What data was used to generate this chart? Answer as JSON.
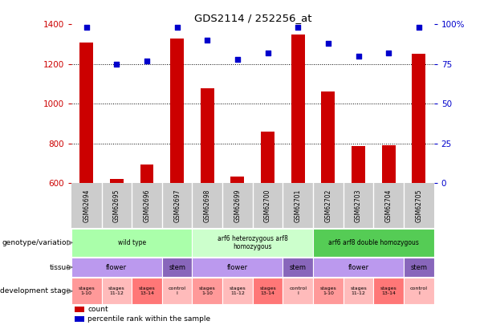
{
  "title": "GDS2114 / 252256_at",
  "samples": [
    "GSM62694",
    "GSM62695",
    "GSM62696",
    "GSM62697",
    "GSM62698",
    "GSM62699",
    "GSM62700",
    "GSM62701",
    "GSM62702",
    "GSM62703",
    "GSM62704",
    "GSM62705"
  ],
  "counts": [
    1310,
    620,
    695,
    1330,
    1080,
    635,
    860,
    1350,
    1060,
    785,
    790,
    1250
  ],
  "percentiles": [
    98,
    75,
    77,
    98,
    90,
    78,
    82,
    98,
    88,
    80,
    82,
    98
  ],
  "ylim_left": [
    600,
    1400
  ],
  "ylim_right": [
    0,
    100
  ],
  "yticks_left": [
    600,
    800,
    1000,
    1200,
    1400
  ],
  "yticks_right": [
    0,
    25,
    50,
    75,
    100
  ],
  "bar_color": "#CC0000",
  "dot_color": "#0000CC",
  "genotype_groups": [
    {
      "label": "wild type",
      "start": 0,
      "end": 3,
      "color": "#AAFFAA"
    },
    {
      "label": "arf6 heterozygous arf8\nhomozygous",
      "start": 4,
      "end": 7,
      "color": "#CCFFCC"
    },
    {
      "label": "arf6 arf8 double homozygous",
      "start": 8,
      "end": 11,
      "color": "#55CC55"
    }
  ],
  "tissue_groups": [
    {
      "label": "flower",
      "start": 0,
      "end": 2,
      "color": "#BB99EE"
    },
    {
      "label": "stem",
      "start": 3,
      "end": 3,
      "color": "#8866BB"
    },
    {
      "label": "flower",
      "start": 4,
      "end": 6,
      "color": "#BB99EE"
    },
    {
      "label": "stem",
      "start": 7,
      "end": 7,
      "color": "#8866BB"
    },
    {
      "label": "flower",
      "start": 8,
      "end": 10,
      "color": "#BB99EE"
    },
    {
      "label": "stem",
      "start": 11,
      "end": 11,
      "color": "#8866BB"
    }
  ],
  "stage_groups": [
    {
      "label": "stages\n1-10",
      "start": 0,
      "end": 0,
      "color": "#FF9999"
    },
    {
      "label": "stages\n11-12",
      "start": 1,
      "end": 1,
      "color": "#FFBBBB"
    },
    {
      "label": "stages\n13-14",
      "start": 2,
      "end": 2,
      "color": "#FF7777"
    },
    {
      "label": "control\nl",
      "start": 3,
      "end": 3,
      "color": "#FFBBBB"
    },
    {
      "label": "stages\n1-10",
      "start": 4,
      "end": 4,
      "color": "#FF9999"
    },
    {
      "label": "stages\n11-12",
      "start": 5,
      "end": 5,
      "color": "#FFBBBB"
    },
    {
      "label": "stages\n13-14",
      "start": 6,
      "end": 6,
      "color": "#FF7777"
    },
    {
      "label": "control\nl",
      "start": 7,
      "end": 7,
      "color": "#FFBBBB"
    },
    {
      "label": "stages\n1-10",
      "start": 8,
      "end": 8,
      "color": "#FF9999"
    },
    {
      "label": "stages\n11-12",
      "start": 9,
      "end": 9,
      "color": "#FFBBBB"
    },
    {
      "label": "stages\n13-14",
      "start": 10,
      "end": 10,
      "color": "#FF7777"
    },
    {
      "label": "control\nl",
      "start": 11,
      "end": 11,
      "color": "#FFBBBB"
    }
  ],
  "sample_bg": "#CCCCCC",
  "bg_color": "#FFFFFF",
  "axis_color_left": "#CC0000",
  "axis_color_right": "#0000CC",
  "right_top_label": "100%"
}
